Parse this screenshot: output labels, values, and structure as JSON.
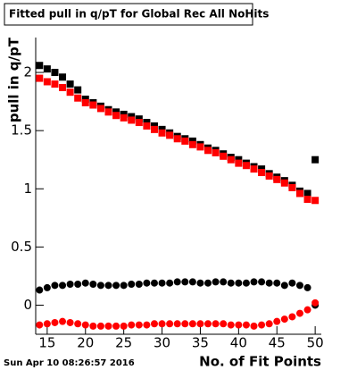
{
  "chart_data": {
    "type": "scatter",
    "title": "Fitted pull in q/pT for Global Rec All NoHits",
    "x_label": "No. of Fit Points",
    "y_label": "pull in q/pT",
    "footer": "Sun Apr 10 08:26:57 2016",
    "x": [
      14,
      15,
      16,
      17,
      18,
      19,
      20,
      21,
      22,
      23,
      24,
      25,
      26,
      27,
      28,
      29,
      30,
      31,
      32,
      33,
      34,
      35,
      36,
      37,
      38,
      39,
      40,
      41,
      42,
      43,
      44,
      45,
      46,
      47,
      48,
      49,
      50
    ],
    "series": [
      {
        "marker": "square",
        "color": "#000000",
        "values": [
          2.06,
          2.03,
          2.0,
          1.96,
          1.9,
          1.85,
          1.77,
          1.74,
          1.71,
          1.68,
          1.66,
          1.64,
          1.62,
          1.6,
          1.57,
          1.54,
          1.51,
          1.48,
          1.45,
          1.43,
          1.41,
          1.38,
          1.35,
          1.33,
          1.3,
          1.27,
          1.25,
          1.22,
          1.19,
          1.17,
          1.13,
          1.1,
          1.07,
          1.03,
          0.98,
          0.96,
          1.25
        ]
      },
      {
        "marker": "square",
        "color": "#ff0000",
        "values": [
          1.95,
          1.92,
          1.9,
          1.87,
          1.83,
          1.78,
          1.74,
          1.72,
          1.69,
          1.66,
          1.63,
          1.61,
          1.59,
          1.57,
          1.54,
          1.51,
          1.48,
          1.46,
          1.43,
          1.41,
          1.38,
          1.36,
          1.33,
          1.31,
          1.28,
          1.25,
          1.22,
          1.2,
          1.17,
          1.14,
          1.11,
          1.08,
          1.05,
          1.01,
          0.96,
          0.91,
          0.9
        ]
      },
      {
        "marker": "circle",
        "color": "#000000",
        "values": [
          0.13,
          0.15,
          0.17,
          0.17,
          0.18,
          0.18,
          0.19,
          0.18,
          0.17,
          0.17,
          0.17,
          0.17,
          0.18,
          0.18,
          0.19,
          0.19,
          0.19,
          0.19,
          0.2,
          0.2,
          0.2,
          0.19,
          0.19,
          0.2,
          0.2,
          0.19,
          0.19,
          0.19,
          0.2,
          0.2,
          0.19,
          0.19,
          0.17,
          0.19,
          0.17,
          0.15,
          0.0
        ]
      },
      {
        "marker": "circle",
        "color": "#ff0000",
        "values": [
          -0.17,
          -0.16,
          -0.15,
          -0.14,
          -0.15,
          -0.16,
          -0.17,
          -0.18,
          -0.18,
          -0.18,
          -0.18,
          -0.18,
          -0.17,
          -0.17,
          -0.17,
          -0.16,
          -0.16,
          -0.16,
          -0.16,
          -0.16,
          -0.16,
          -0.16,
          -0.16,
          -0.16,
          -0.16,
          -0.17,
          -0.17,
          -0.17,
          -0.18,
          -0.17,
          -0.16,
          -0.14,
          -0.12,
          -0.1,
          -0.07,
          -0.04,
          0.02
        ]
      }
    ],
    "xlim": [
      13.5,
      50.8
    ],
    "xticks": [
      15,
      20,
      25,
      30,
      35,
      40,
      45,
      50
    ],
    "ylim": [
      -0.25,
      2.3
    ],
    "yticks": [
      0,
      0.5,
      1,
      1.5,
      2
    ]
  }
}
